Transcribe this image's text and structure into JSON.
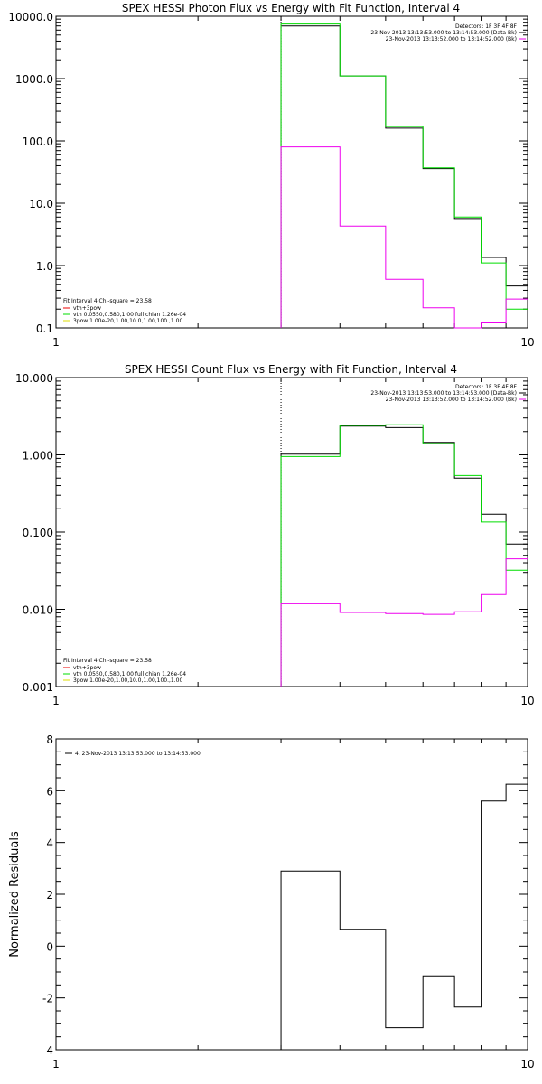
{
  "chart_data": [
    {
      "type": "line",
      "step": true,
      "title": "SPEX HESSI Photon Flux vs Energy with Fit Function, Interval 4",
      "xlabel": "",
      "ylabel": "",
      "xscale": "log",
      "yscale": "log",
      "xlim": [
        1,
        10
      ],
      "ylim": [
        0.1,
        10000
      ],
      "xticks": [
        1,
        10
      ],
      "xtick_labels": [
        "1",
        "10"
      ],
      "yticks": [
        0.1,
        1,
        10,
        100,
        1000,
        10000
      ],
      "ytick_labels": [
        "0.1",
        "1.0",
        "10.0",
        "100.0",
        "1000.0",
        "10000.0"
      ],
      "bin_edges": [
        3.0,
        3.5,
        4.0,
        4.5,
        5.0,
        5.5,
        6.0,
        6.5,
        7.0,
        7.5,
        8.0,
        9.0,
        10.0
      ],
      "marker_x": 3.0,
      "series": [
        {
          "name": "data",
          "color": "#000000",
          "values": [
            7000,
            7000,
            1100,
            1100,
            160,
            160,
            36,
            36,
            5.7,
            5.7,
            1.35,
            0.47
          ]
        },
        {
          "name": "vth+3pow",
          "color": "#00dd00",
          "values": [
            7500,
            7500,
            1100,
            1100,
            170,
            170,
            37,
            37,
            6.0,
            6.0,
            1.1,
            0.2
          ]
        },
        {
          "name": "3pow",
          "color": "#ee00ee",
          "values": [
            80,
            80,
            4.3,
            4.3,
            0.6,
            0.6,
            0.21,
            0.21,
            0.095,
            0.095,
            0.12,
            0.29
          ]
        }
      ],
      "legend_right": {
        "header": "Detectors: 1F 3F 4F 8F",
        "entries": [
          {
            "text": "23-Nov-2013 13:13:53.000 to 13:14:53.000 (Data-Bk)",
            "color": "#000000"
          },
          {
            "text": "23-Nov-2013 13:13:52.000 to 13:14:52.000 (Bk)",
            "color": "#ee00ee"
          }
        ]
      },
      "legend_left": {
        "header": "Fit Interval 4   Chi-square = 23.58",
        "entries": [
          {
            "text": "vth+3pow",
            "color": "#ee0000"
          },
          {
            "text": "vth 0.0550,0.580,1.00  full chian 1.26e-04",
            "color": "#00dd00"
          },
          {
            "text": "3pow 1.00e-20,1.00,10.0,1.00,100.,1.00",
            "color": "#dddd00"
          }
        ]
      }
    },
    {
      "type": "line",
      "step": true,
      "title": "SPEX HESSI Count Flux vs Energy with Fit Function, Interval 4",
      "xlabel": "",
      "ylabel": "",
      "xscale": "log",
      "yscale": "log",
      "xlim": [
        1,
        10
      ],
      "ylim": [
        0.001,
        10
      ],
      "xticks": [
        1,
        10
      ],
      "xtick_labels": [
        "1",
        "10"
      ],
      "yticks": [
        0.001,
        0.01,
        0.1,
        1,
        10
      ],
      "ytick_labels": [
        "0.001",
        "0.010",
        "0.100",
        "1.000",
        "10.000"
      ],
      "bin_edges": [
        3.0,
        3.5,
        4.0,
        4.5,
        5.0,
        5.5,
        6.0,
        6.5,
        7.0,
        7.5,
        8.0,
        9.0,
        10.0
      ],
      "marker_x": 3.0,
      "series": [
        {
          "name": "data",
          "color": "#000000",
          "values": [
            1.02,
            1.02,
            2.35,
            2.35,
            2.25,
            2.25,
            1.45,
            1.45,
            0.5,
            0.5,
            0.17,
            0.07
          ]
        },
        {
          "name": "vth+3pow",
          "color": "#00dd00",
          "values": [
            0.95,
            0.95,
            2.4,
            2.4,
            2.45,
            2.45,
            1.4,
            1.4,
            0.54,
            0.54,
            0.135,
            0.032
          ]
        },
        {
          "name": "3pow",
          "color": "#ee00ee",
          "values": [
            0.0118,
            0.0118,
            0.0091,
            0.0091,
            0.0088,
            0.0088,
            0.0086,
            0.0086,
            0.0093,
            0.0093,
            0.0155,
            0.045
          ]
        }
      ],
      "legend_right": {
        "header": "Detectors: 1F 3F 4F 8F",
        "entries": [
          {
            "text": "23-Nov-2013 13:13:53.000 to 13:14:53.000 (Data-Bk)",
            "color": "#000000"
          },
          {
            "text": "23-Nov-2013 13:13:52.000 to 13:14:52.000 (Bk)",
            "color": "#ee00ee"
          }
        ]
      },
      "legend_left": {
        "header": "Fit Interval 4   Chi-square = 23.58",
        "entries": [
          {
            "text": "vth+3pow",
            "color": "#ee0000"
          },
          {
            "text": "vth 0.0550,0.580,1.00  full chian 1.26e-04",
            "color": "#00dd00"
          },
          {
            "text": "3pow 1.00e-20,1.00,10.0,1.00,100.,1.00",
            "color": "#dddd00"
          }
        ]
      }
    },
    {
      "type": "line",
      "step": true,
      "title": "",
      "xlabel": "",
      "ylabel": "Normalized Residuals",
      "xscale": "log",
      "yscale": "linear",
      "xlim": [
        1,
        10
      ],
      "ylim": [
        -4,
        8
      ],
      "xticks": [
        1,
        10
      ],
      "xtick_labels": [
        "1",
        "10"
      ],
      "yticks": [
        -4,
        -2,
        0,
        2,
        4,
        6,
        8
      ],
      "ytick_labels": [
        "-4",
        "-2",
        "0",
        "2",
        "4",
        "6",
        "8"
      ],
      "bin_edges": [
        3.0,
        4.0,
        5.0,
        6.0,
        7.0,
        8.0,
        9.0,
        10.0
      ],
      "series": [
        {
          "name": "4. 23-Nov-2013 13:13:53.000 to 13:14:53.000",
          "color": "#000000",
          "values": [
            2.9,
            0.65,
            -3.15,
            -1.15,
            -2.35,
            5.6,
            6.25
          ]
        }
      ],
      "legend_left": {
        "header": "",
        "entries": [
          {
            "text": "4. 23-Nov-2013 13:13:53.000 to 13:14:53.000",
            "color": "#000000"
          }
        ]
      }
    }
  ]
}
